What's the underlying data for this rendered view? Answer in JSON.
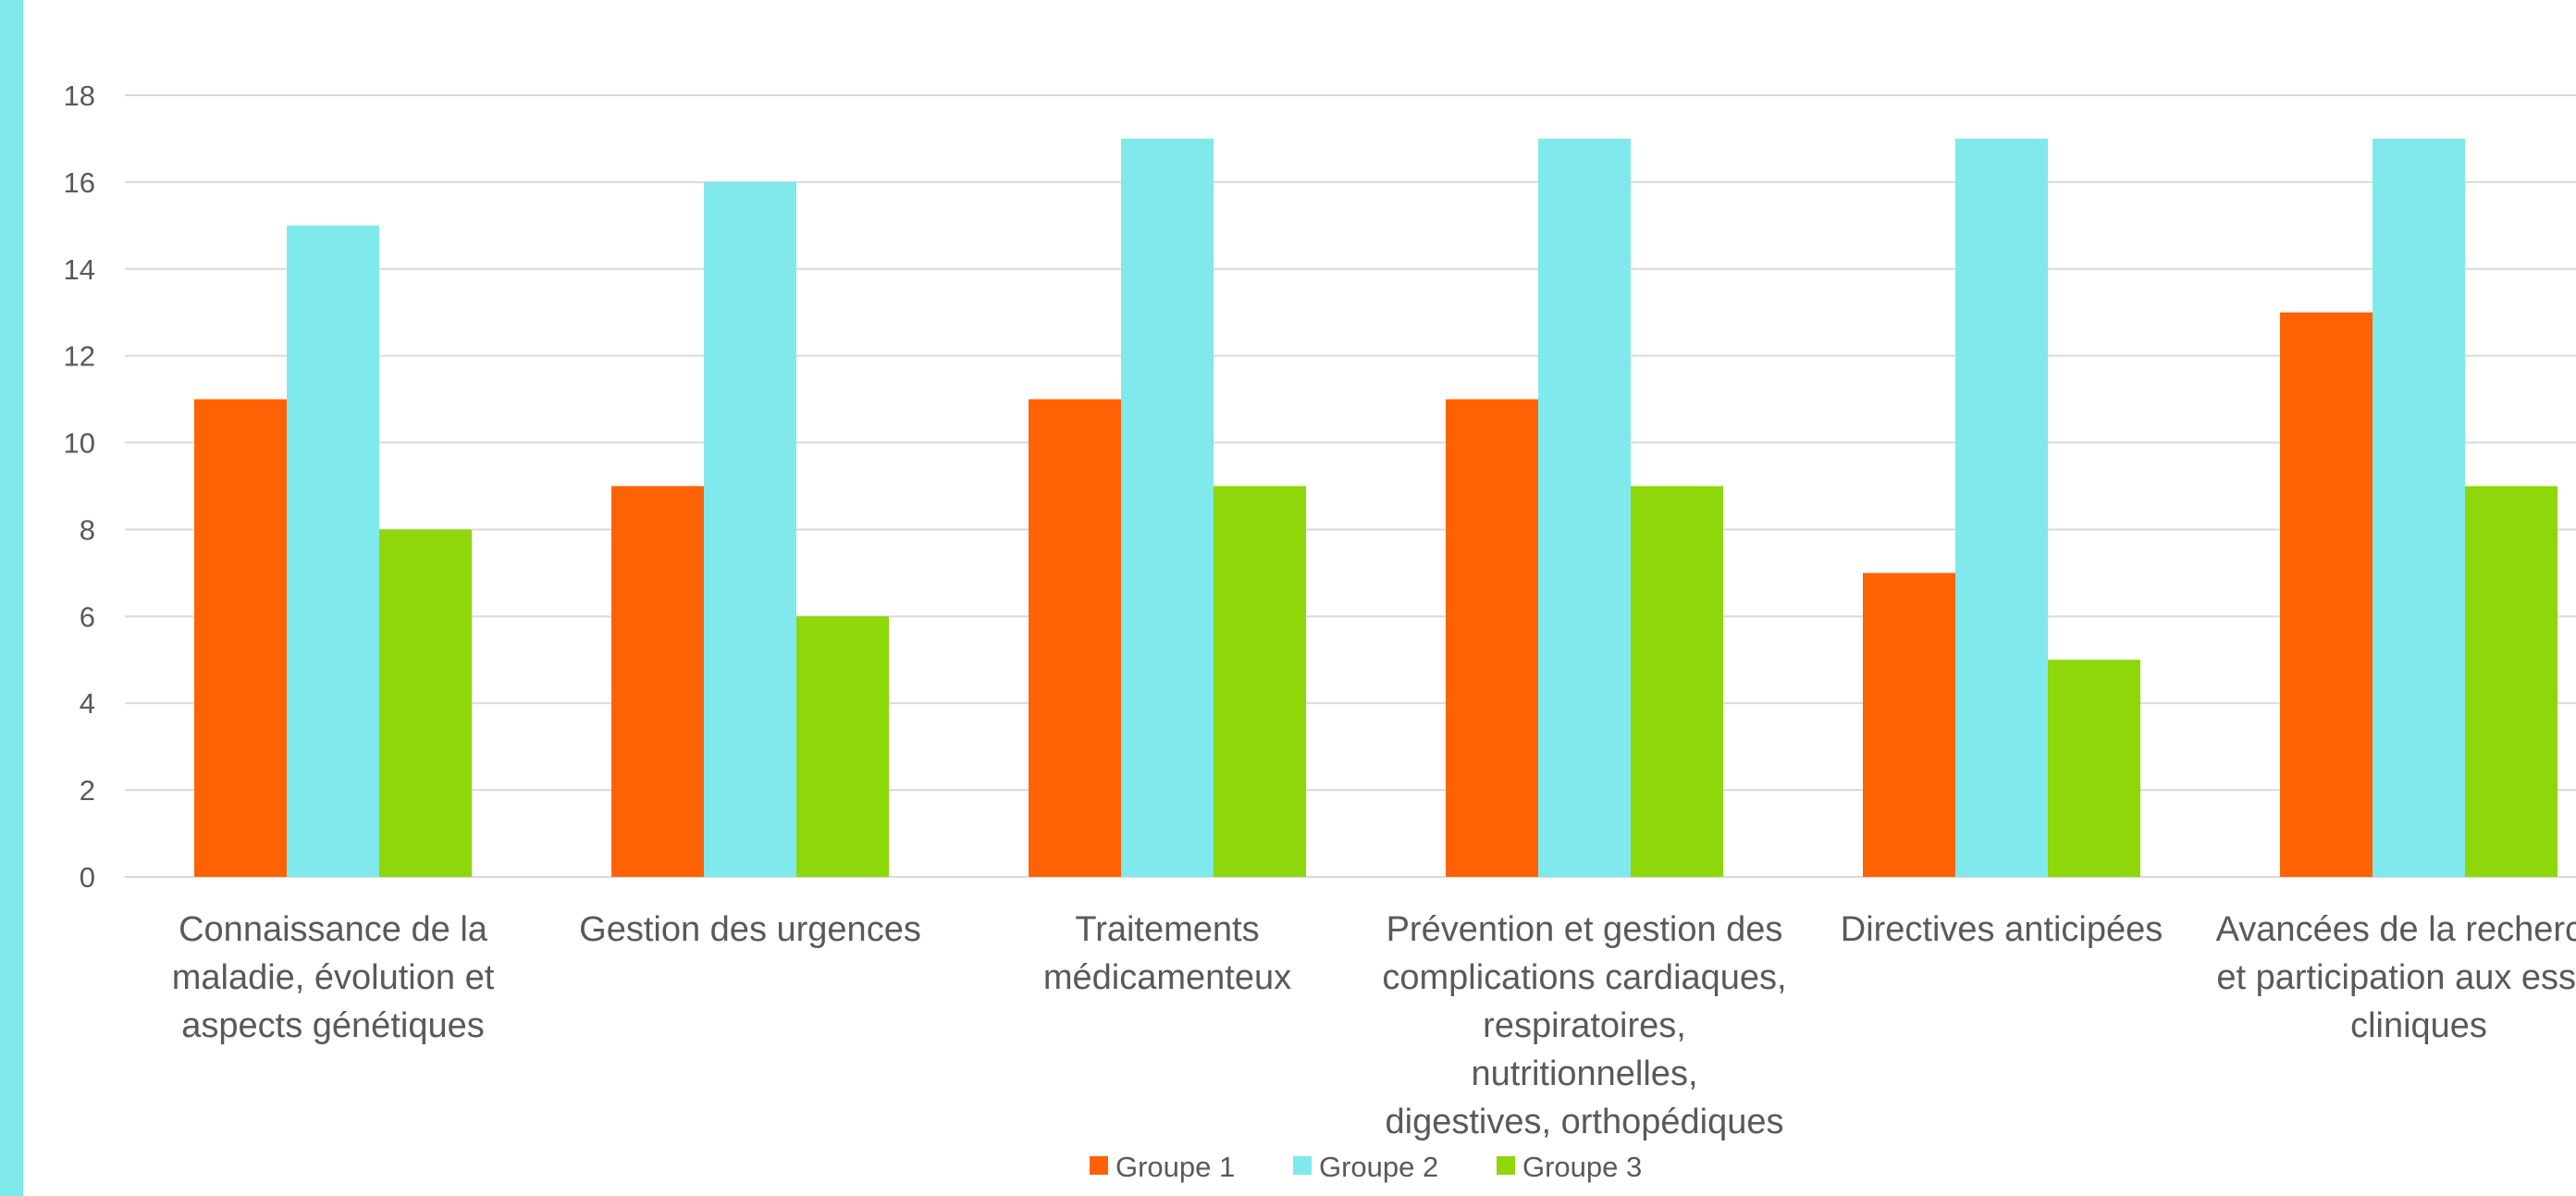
{
  "chart_data": {
    "type": "bar",
    "categories": [
      [
        "Connaissance de la",
        "maladie, évolution et",
        "aspects génétiques"
      ],
      [
        "Gestion des urgences"
      ],
      [
        "Traitements",
        "médicamenteux"
      ],
      [
        "Prévention et gestion des",
        "complications cardiaques,",
        "respiratoires,",
        "nutritionnelles,",
        "digestives, orthopédiques"
      ],
      [
        "Directives anticipées"
      ],
      [
        "Avancées de la recherche",
        "et participation aux essais",
        "cliniques"
      ]
    ],
    "series": [
      {
        "name": "Groupe 1",
        "color": "#FF6205",
        "values": [
          11,
          9,
          11,
          11,
          7,
          13
        ]
      },
      {
        "name": "Groupe 2",
        "color": "#7FE9EC",
        "values": [
          15,
          16,
          17,
          17,
          17,
          17
        ]
      },
      {
        "name": "Groupe 3",
        "color": "#8DD70A",
        "values": [
          8,
          6,
          9,
          9,
          5,
          9
        ]
      }
    ],
    "ylim": [
      0,
      18
    ],
    "yticks": [
      0,
      2,
      4,
      6,
      8,
      10,
      12,
      14,
      16,
      18
    ],
    "grid": true,
    "legend_position": "bottom"
  },
  "colors": {
    "accent_strip": "#7FE9EC",
    "gridline": "#D9D9D9",
    "text": "#595959"
  }
}
